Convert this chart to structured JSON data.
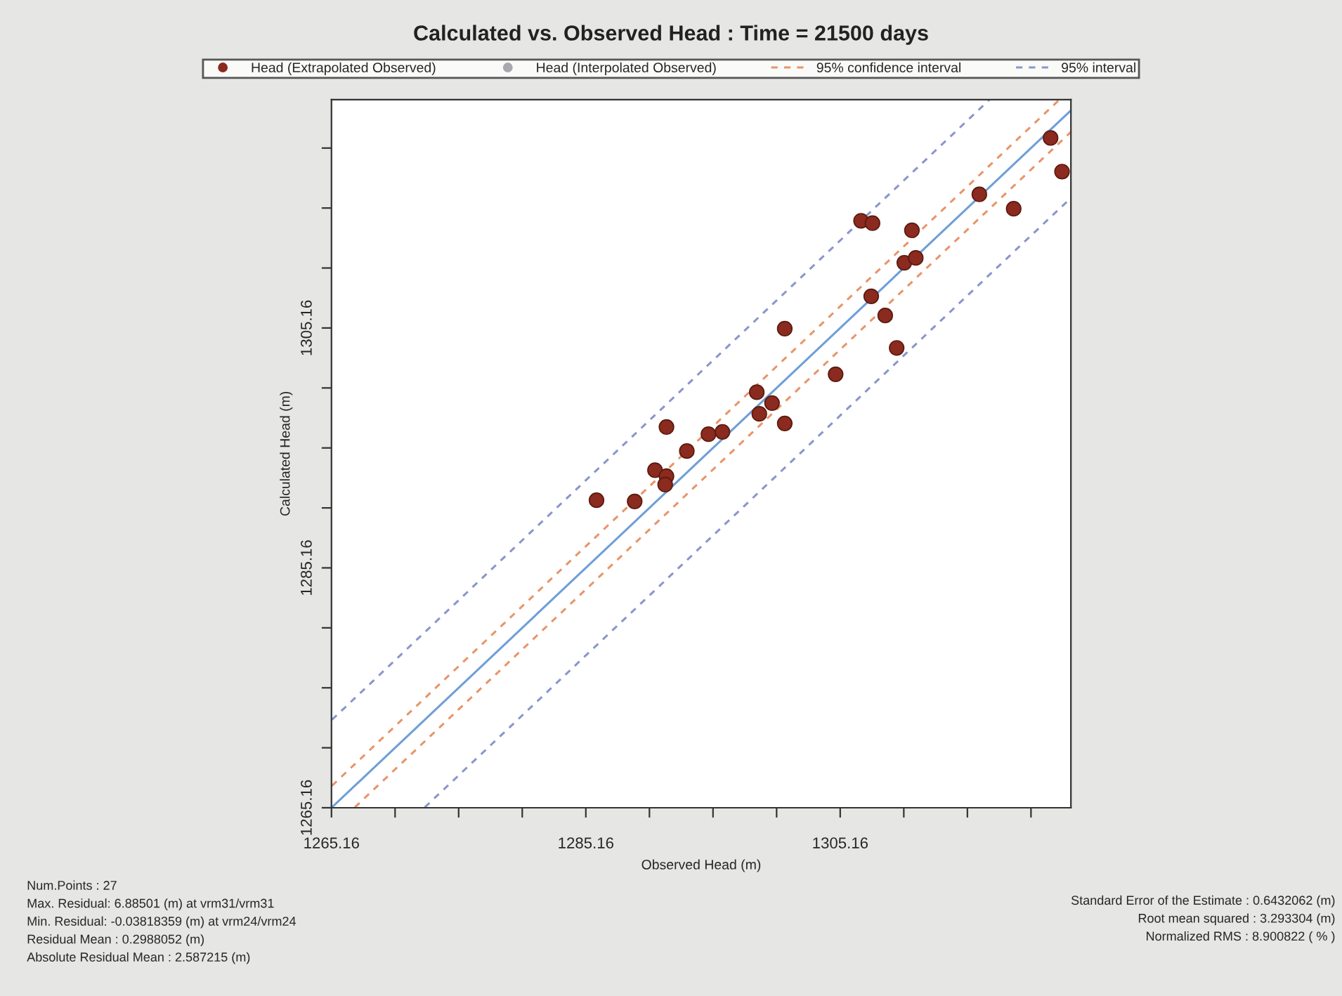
{
  "chart_data": {
    "type": "scatter",
    "title": "Calculated vs. Observed Head : Time = 21500 days",
    "xlabel": "Observed Head (m)",
    "ylabel": "Calculated Head (m)",
    "xlim": [
      1265.16,
      1323.3
    ],
    "ylim": [
      1265.16,
      1324.2
    ],
    "xticks": [
      1265.16,
      {
        "value": 1270.16,
        "label": null
      },
      {
        "value": 1275.16,
        "label": null
      },
      {
        "value": 1280.16,
        "label": null
      },
      1285.16,
      {
        "value": 1290.16,
        "label": null
      },
      {
        "value": 1295.16,
        "label": null
      },
      {
        "value": 1300.16,
        "label": null
      },
      1305.16,
      {
        "value": 1310.16,
        "label": null
      },
      {
        "value": 1315.16,
        "label": null
      },
      {
        "value": 1320.16,
        "label": null
      }
    ],
    "yticks": [
      1265.16,
      {
        "value": 1270.16,
        "label": null
      },
      {
        "value": 1275.16,
        "label": null
      },
      {
        "value": 1280.16,
        "label": null
      },
      1285.16,
      {
        "value": 1290.16,
        "label": null
      },
      {
        "value": 1295.16,
        "label": null
      },
      {
        "value": 1300.16,
        "label": null
      },
      1305.16,
      {
        "value": 1310.16,
        "label": null
      },
      {
        "value": 1315.16,
        "label": null
      },
      {
        "value": 1320.16,
        "label": null
      }
    ],
    "grid": false,
    "legend": "top",
    "series": [
      {
        "name": "Head (Extrapolated Observed)",
        "marker": "circle",
        "color": "#8b2a1e",
        "x": [
          1286.0,
          1289.0,
          1290.6,
          1291.5,
          1291.4,
          1291.5,
          1293.1,
          1294.8,
          1295.9,
          1298.6,
          1298.8,
          1299.8,
          1300.8,
          1300.8,
          1304.8,
          1306.8,
          1307.7,
          1307.6,
          1308.7,
          1309.6,
          1310.8,
          1310.2,
          1311.1,
          1316.1,
          1318.8,
          1321.7,
          1322.6
        ],
        "values": [
          1290.8,
          1290.7,
          1293.3,
          1292.8,
          1292.1,
          1296.9,
          1294.9,
          1296.3,
          1296.5,
          1299.8,
          1298.0,
          1298.9,
          1297.2,
          1305.1,
          1301.3,
          1314.1,
          1313.9,
          1307.8,
          1306.2,
          1303.5,
          1313.3,
          1310.6,
          1311.0,
          1316.3,
          1315.1,
          1321.0,
          1318.2
        ]
      },
      {
        "name": "Head (Interpolated Observed)",
        "marker": "circle",
        "color": "#a8a8b0"
      },
      {
        "name": "95% confidence interval",
        "type": "line",
        "marker": "none",
        "line_style": "dashed",
        "color": "#e8956a",
        "x": [
          1265.2,
          1322.4
        ],
        "values": [
          1267.0,
          1324.2
        ]
      },
      {
        "type": "line",
        "marker": "none",
        "line_style": "dashed",
        "color": "#e8956a",
        "x": [
          1267.0,
          1323.3
        ],
        "values": [
          1265.2,
          1321.5
        ]
      },
      {
        "name": "95% interval",
        "type": "line",
        "marker": "none",
        "line_style": "dashed",
        "color": "#8a96cc",
        "x": [
          1265.2,
          1316.9
        ],
        "values": [
          1272.5,
          1324.2
        ]
      },
      {
        "type": "line",
        "marker": "none",
        "line_style": "dashed",
        "color": "#8a96cc",
        "x": [
          1272.5,
          1323.3
        ],
        "values": [
          1265.2,
          1316.0
        ]
      },
      {
        "type": "line",
        "marker": "none",
        "line_style": "solid",
        "color": "#6f9fd8",
        "x": [
          1265.2,
          1323.3
        ],
        "values": [
          1265.2,
          1323.3
        ]
      }
    ],
    "annotations": [
      "Num.Points : 27",
      "Max. Residual: 6.88501 (m) at vrm31/vrm31",
      "Min. Residual: -0.03818359 (m) at vrm24/vrm24",
      "Residual Mean : 0.2988052 (m)",
      "Absolute Residual Mean : 2.587215 (m)",
      "Standard Error of the Estimate : 0.6432062 (m)",
      "Root mean squared : 3.293304 (m)",
      "Normalized RMS : 8.900822 ( % )"
    ]
  }
}
